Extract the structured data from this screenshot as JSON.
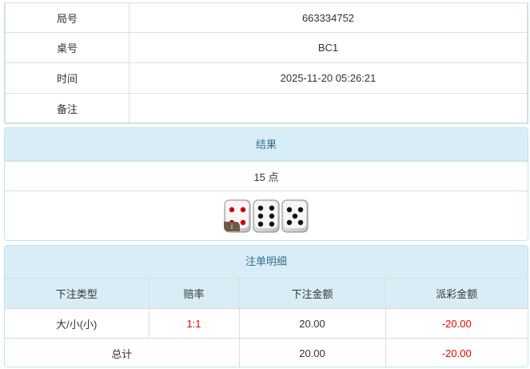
{
  "info": [
    {
      "label": "局号",
      "value": "663334752"
    },
    {
      "label": "桌号",
      "value": "BC1"
    },
    {
      "label": "时间",
      "value": "2025-11-20 05:26:21"
    },
    {
      "label": "备注",
      "value": ""
    }
  ],
  "result": {
    "title": "结果",
    "points": "15 点",
    "dice": [
      4,
      6,
      5
    ],
    "info_badge": "i"
  },
  "bets": {
    "title": "注单明细",
    "headers": [
      "下注类型",
      "赔率",
      "下注金额",
      "派彩金额"
    ],
    "rows": [
      {
        "type": "大/小(小)",
        "odds": "1:1",
        "amount": "20.00",
        "payout": "-20.00"
      }
    ],
    "total": {
      "label": "总计",
      "amount": "20.00",
      "payout": "-20.00"
    }
  },
  "colors": {
    "header_bg": "#d9edf7",
    "header_text": "#31708f",
    "negative": "#e00000"
  }
}
